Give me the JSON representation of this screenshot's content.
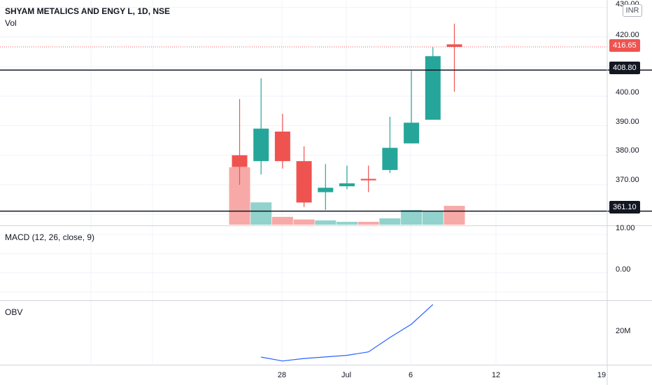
{
  "header": {
    "symbol_title": "SHYAM METALICS AND ENGY L, 1D, NSE",
    "volume_label": "Vol",
    "currency_badge": "INR"
  },
  "indicators": {
    "macd_label": "MACD (12, 26, close, 9)",
    "obv_label": "OBV"
  },
  "price_axis": {
    "ticks": [
      "430.00",
      "420.00",
      "400.00",
      "390.00",
      "380.00",
      "370.00"
    ],
    "last_price": "416.65",
    "level_high": "408.80",
    "level_low": "361.10"
  },
  "macd_axis": {
    "ticks": [
      "10.00",
      "0.00"
    ]
  },
  "obv_axis": {
    "ticks": [
      "20M"
    ]
  },
  "time_axis": {
    "ticks": [
      "28",
      "Jul",
      "6",
      "12",
      "19"
    ]
  },
  "colors": {
    "up": "#26a69a",
    "down": "#ef5350",
    "up_volume": "#92d2cc",
    "down_volume": "#f7a9a7",
    "obv_line": "#2962ff",
    "horizontal_line": "#131722"
  },
  "chart_data": {
    "type": "candlestick",
    "title": "SHYAM METALICS AND ENGY L, 1D, NSE",
    "price_range": [
      356.5,
      432.5
    ],
    "horizontal_lines": [
      408.8,
      361.1
    ],
    "last_price": 416.65,
    "candles": [
      {
        "o": 380.0,
        "h": 399.0,
        "l": 370.0,
        "c": 376.0
      },
      {
        "o": 378.0,
        "h": 406.0,
        "l": 373.5,
        "c": 389.0
      },
      {
        "o": 388.0,
        "h": 394.0,
        "l": 375.5,
        "c": 378.0
      },
      {
        "o": 378.0,
        "h": 383.0,
        "l": 362.5,
        "c": 364.0
      },
      {
        "o": 367.5,
        "h": 377.0,
        "l": 361.5,
        "c": 369.0
      },
      {
        "o": 369.5,
        "h": 376.5,
        "l": 368.5,
        "c": 370.5
      },
      {
        "o": 372.0,
        "h": 376.5,
        "l": 367.5,
        "c": 371.5
      },
      {
        "o": 375.0,
        "h": 393.0,
        "l": 374.0,
        "c": 382.5
      },
      {
        "o": 384.0,
        "h": 408.5,
        "l": 384.0,
        "c": 391.0
      },
      {
        "o": 392.0,
        "h": 416.5,
        "l": 392.0,
        "c": 413.5
      },
      {
        "o": 417.5,
        "h": 424.5,
        "l": 401.5,
        "c": 416.65
      }
    ],
    "volume": {
      "values": [
        19.8,
        7.7,
        2.7,
        1.8,
        1.5,
        1.0,
        1.0,
        2.2,
        5.1,
        4.8,
        6.5
      ],
      "up": [
        false,
        true,
        false,
        false,
        true,
        true,
        false,
        true,
        true,
        true,
        false
      ]
    },
    "macd": {
      "range": [
        -7.0,
        12.0
      ]
    },
    "obv": {
      "start_index": 1,
      "values": [
        16.0,
        12.6,
        14.8,
        16.1,
        17.5,
        20.5,
        33.0,
        44.5,
        61.5
      ],
      "range": [
        10.0,
        64.0
      ]
    }
  }
}
